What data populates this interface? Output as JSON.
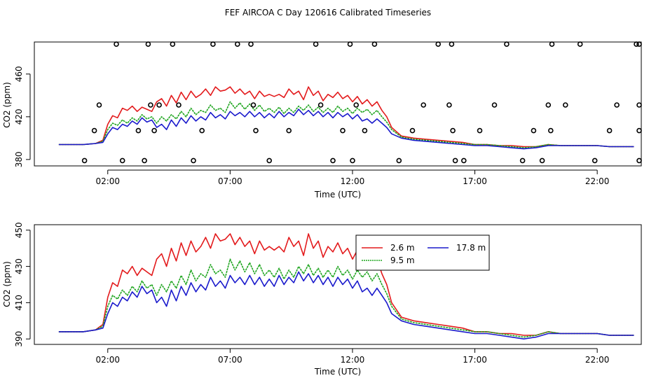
{
  "title": "FEF AIRCOA C  Day 120616  Calibrated Timeseries",
  "colors": {
    "s26": "#e31a1c",
    "s95": "#1fa51f",
    "s178": "#1a1acc",
    "axis": "#000000"
  },
  "chart_data": [
    {
      "type": "line",
      "name": "top",
      "xlabel": "Time (UTC)",
      "ylabel": "CO2 (ppm)",
      "xlim": [
        -1.0,
        23.8
      ],
      "ylim": [
        374,
        490
      ],
      "xticks": [
        2,
        7,
        12,
        17,
        22
      ],
      "xtick_labels": [
        "02:00",
        "07:00",
        "12:00",
        "17:00",
        "22:00"
      ],
      "yticks": [
        380,
        420,
        460
      ],
      "ytick_labels": [
        "380",
        "420",
        "460"
      ],
      "note": "Open circles mark flagged/out-of-range points placed on four rows (488, 431, 407, 379)",
      "circles": {
        "x": [
          1.05,
          1.45,
          1.65,
          2.35,
          2.6,
          3.25,
          3.5,
          3.65,
          3.75,
          3.9,
          4.1,
          4.65,
          4.9,
          5.5,
          5.85,
          6.3,
          7.3,
          7.85,
          7.95,
          8.05,
          8.6,
          9.4,
          10.5,
          10.7,
          11.2,
          11.6,
          11.9,
          12.0,
          12.15,
          12.5,
          12.9,
          13.9,
          14.45,
          14.9,
          15.5,
          15.95,
          16.05,
          16.1,
          16.2,
          16.55,
          17.2,
          17.8,
          18.3,
          18.95,
          19.4,
          19.75,
          20.0,
          20.1,
          20.15,
          20.7,
          21.3,
          21.9,
          22.5,
          22.8,
          23.6,
          24.1,
          24.2,
          24.25,
          24.35
        ],
        "y": [
          379,
          407,
          431,
          488,
          379,
          407,
          379,
          488,
          431,
          407,
          431,
          488,
          431,
          379,
          407,
          488,
          488,
          488,
          431,
          407,
          379,
          407,
          488,
          431,
          379,
          407,
          488,
          379,
          431,
          407,
          488,
          379,
          407,
          431,
          488,
          431,
          488,
          407,
          379,
          379,
          407,
          431,
          488,
          379,
          407,
          379,
          431,
          407,
          488,
          431,
          488,
          379,
          407,
          431,
          488,
          488,
          431,
          407,
          379
        ]
      }
    },
    {
      "type": "line",
      "name": "bottom",
      "xlabel": "Time (UTC)",
      "ylabel": "CO2 (ppm)",
      "xlim": [
        -1.0,
        23.8
      ],
      "ylim": [
        387,
        453
      ],
      "xticks": [
        2,
        7,
        12,
        17,
        22
      ],
      "xtick_labels": [
        "02:00",
        "07:00",
        "12:00",
        "17:00",
        "22:00"
      ],
      "yticks": [
        390,
        410,
        430,
        450
      ],
      "ytick_labels": [
        "390",
        "410",
        "430",
        "450"
      ],
      "legend": {
        "position": "top-right",
        "entries": [
          "2.6 m",
          "9.5 m",
          "17.8 m"
        ]
      }
    }
  ],
  "series": [
    {
      "key": "s26",
      "name": "2.6 m",
      "x": [
        0.0,
        0.5,
        1.0,
        1.5,
        1.8,
        2.0,
        2.2,
        2.4,
        2.6,
        2.8,
        3.0,
        3.2,
        3.4,
        3.6,
        3.8,
        4.0,
        4.2,
        4.4,
        4.6,
        4.8,
        5.0,
        5.2,
        5.4,
        5.6,
        5.8,
        6.0,
        6.2,
        6.4,
        6.6,
        6.8,
        7.0,
        7.2,
        7.4,
        7.6,
        7.8,
        8.0,
        8.2,
        8.4,
        8.6,
        8.8,
        9.0,
        9.2,
        9.4,
        9.6,
        9.8,
        10.0,
        10.2,
        10.4,
        10.6,
        10.8,
        11.0,
        11.2,
        11.4,
        11.6,
        11.8,
        12.0,
        12.2,
        12.4,
        12.6,
        12.8,
        13.0,
        13.2,
        13.4,
        13.6,
        14.0,
        14.5,
        15.0,
        15.5,
        16.0,
        16.5,
        17.0,
        17.5,
        18.0,
        18.5,
        19.0,
        19.5,
        20.0,
        20.5,
        21.0,
        21.5,
        22.0,
        22.5,
        23.0,
        23.5
      ],
      "y": [
        394,
        394,
        394,
        395,
        398,
        413,
        421,
        419,
        428,
        426,
        430,
        425,
        429,
        427,
        425,
        434,
        437,
        430,
        440,
        433,
        443,
        436,
        444,
        438,
        441,
        446,
        440,
        448,
        444,
        445,
        448,
        442,
        446,
        441,
        444,
        437,
        444,
        439,
        441,
        439,
        441,
        438,
        446,
        441,
        444,
        436,
        448,
        440,
        444,
        435,
        441,
        438,
        443,
        437,
        440,
        434,
        439,
        432,
        436,
        430,
        434,
        426,
        420,
        410,
        402,
        400,
        399,
        398,
        397,
        396,
        394,
        394,
        393,
        393,
        392,
        392,
        394,
        393,
        393,
        393,
        393,
        392,
        392,
        392
      ]
    },
    {
      "key": "s95",
      "name": "9.5 m",
      "x": [
        0.0,
        0.5,
        1.0,
        1.5,
        1.8,
        2.0,
        2.2,
        2.4,
        2.6,
        2.8,
        3.0,
        3.2,
        3.4,
        3.6,
        3.8,
        4.0,
        4.2,
        4.4,
        4.6,
        4.8,
        5.0,
        5.2,
        5.4,
        5.6,
        5.8,
        6.0,
        6.2,
        6.4,
        6.6,
        6.8,
        7.0,
        7.2,
        7.4,
        7.6,
        7.8,
        8.0,
        8.2,
        8.4,
        8.6,
        8.8,
        9.0,
        9.2,
        9.4,
        9.6,
        9.8,
        10.0,
        10.2,
        10.4,
        10.6,
        10.8,
        11.0,
        11.2,
        11.4,
        11.6,
        11.8,
        12.0,
        12.2,
        12.4,
        12.6,
        12.8,
        13.0,
        13.2,
        13.4,
        13.6,
        14.0,
        14.5,
        15.0,
        15.5,
        16.0,
        16.5,
        17.0,
        17.5,
        18.0,
        18.5,
        19.0,
        19.5,
        20.0,
        20.5,
        21.0,
        21.5,
        22.0,
        22.5,
        23.0,
        23.5
      ],
      "y": [
        394,
        394,
        394,
        395,
        397,
        408,
        414,
        412,
        417,
        414,
        419,
        416,
        422,
        418,
        420,
        414,
        420,
        416,
        422,
        418,
        425,
        420,
        428,
        422,
        426,
        424,
        431,
        426,
        428,
        424,
        434,
        428,
        433,
        427,
        432,
        426,
        431,
        425,
        428,
        424,
        429,
        423,
        428,
        424,
        430,
        426,
        431,
        425,
        429,
        424,
        428,
        424,
        430,
        425,
        428,
        423,
        428,
        424,
        427,
        422,
        426,
        420,
        415,
        408,
        401,
        399,
        398,
        397,
        396,
        395,
        394,
        394,
        393,
        392,
        391,
        392,
        394,
        393,
        393,
        393,
        393,
        392,
        392,
        392
      ]
    },
    {
      "key": "s178",
      "name": "17.8 m",
      "x": [
        0.0,
        0.5,
        1.0,
        1.5,
        1.8,
        2.0,
        2.2,
        2.4,
        2.6,
        2.8,
        3.0,
        3.2,
        3.4,
        3.6,
        3.8,
        4.0,
        4.2,
        4.4,
        4.6,
        4.8,
        5.0,
        5.2,
        5.4,
        5.6,
        5.8,
        6.0,
        6.2,
        6.4,
        6.6,
        6.8,
        7.0,
        7.2,
        7.4,
        7.6,
        7.8,
        8.0,
        8.2,
        8.4,
        8.6,
        8.8,
        9.0,
        9.2,
        9.4,
        9.6,
        9.8,
        10.0,
        10.2,
        10.4,
        10.6,
        10.8,
        11.0,
        11.2,
        11.4,
        11.6,
        11.8,
        12.0,
        12.2,
        12.4,
        12.6,
        12.8,
        13.0,
        13.2,
        13.4,
        13.6,
        14.0,
        14.5,
        15.0,
        15.5,
        16.0,
        16.5,
        17.0,
        17.5,
        18.0,
        18.5,
        19.0,
        19.5,
        20.0,
        20.5,
        21.0,
        21.5,
        22.0,
        22.5,
        23.0,
        23.5
      ],
      "y": [
        394,
        394,
        394,
        395,
        396,
        404,
        410,
        408,
        413,
        411,
        416,
        413,
        419,
        415,
        417,
        410,
        413,
        408,
        417,
        411,
        419,
        414,
        421,
        416,
        420,
        417,
        424,
        419,
        422,
        418,
        425,
        421,
        424,
        420,
        425,
        420,
        424,
        419,
        423,
        419,
        425,
        420,
        424,
        421,
        427,
        422,
        426,
        421,
        425,
        420,
        424,
        419,
        424,
        420,
        423,
        418,
        422,
        416,
        418,
        414,
        418,
        414,
        410,
        404,
        400,
        398,
        397,
        396,
        395,
        394,
        393,
        393,
        392,
        391,
        390,
        391,
        393,
        393,
        393,
        393,
        393,
        392,
        392,
        392
      ]
    }
  ]
}
